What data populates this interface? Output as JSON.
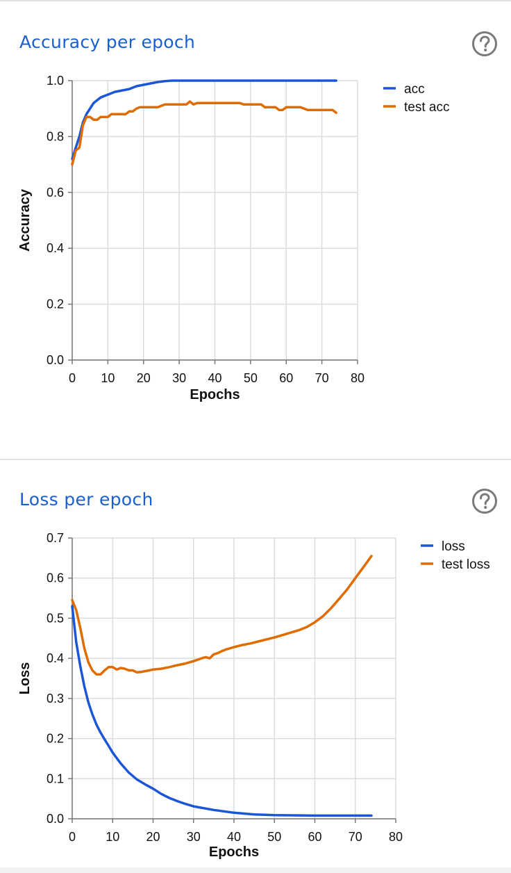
{
  "panels": [
    {
      "title": "Accuracy per epoch",
      "chart_data": {
        "type": "line",
        "title": "",
        "xlabel": "Epochs",
        "ylabel": "Accuracy",
        "xlim": [
          0,
          80
        ],
        "ylim": [
          0,
          1
        ],
        "xticks": [
          "0",
          "10",
          "20",
          "30",
          "40",
          "50",
          "60",
          "70",
          "80"
        ],
        "yticks": [
          "0.0",
          "0.2",
          "0.4",
          "0.6",
          "0.8",
          "1.0"
        ],
        "grid": true,
        "legend": "top-right",
        "series": [
          {
            "name": "acc",
            "color": "#1a56d6",
            "x": [
              0,
              1,
              2,
              3,
              4,
              5,
              6,
              7,
              8,
              9,
              10,
              12,
              14,
              16,
              18,
              20,
              22,
              24,
              26,
              28,
              30,
              35,
              40,
              50,
              60,
              70,
              74
            ],
            "y": [
              0.72,
              0.76,
              0.8,
              0.85,
              0.88,
              0.9,
              0.92,
              0.93,
              0.94,
              0.945,
              0.95,
              0.96,
              0.965,
              0.97,
              0.98,
              0.985,
              0.99,
              0.995,
              0.998,
              1.0,
              1.0,
              1.0,
              1.0,
              1.0,
              1.0,
              1.0,
              1.0
            ]
          },
          {
            "name": "test acc",
            "color": "#e06c00",
            "x": [
              0,
              1,
              2,
              3,
              4,
              5,
              6,
              7,
              8,
              9,
              10,
              11,
              12,
              14,
              15,
              16,
              17,
              18,
              19,
              20,
              21,
              22,
              24,
              25,
              26,
              28,
              30,
              31,
              32,
              33,
              34,
              35,
              38,
              40,
              45,
              47,
              48,
              50,
              52,
              53,
              54,
              56,
              57,
              58,
              59,
              60,
              62,
              63,
              64,
              66,
              67,
              68,
              70,
              72,
              73,
              74
            ],
            "y": [
              0.7,
              0.75,
              0.76,
              0.84,
              0.87,
              0.87,
              0.86,
              0.86,
              0.87,
              0.87,
              0.87,
              0.88,
              0.88,
              0.88,
              0.88,
              0.89,
              0.89,
              0.9,
              0.905,
              0.905,
              0.905,
              0.905,
              0.905,
              0.91,
              0.915,
              0.915,
              0.915,
              0.915,
              0.915,
              0.925,
              0.915,
              0.92,
              0.92,
              0.92,
              0.92,
              0.92,
              0.915,
              0.915,
              0.915,
              0.915,
              0.905,
              0.905,
              0.905,
              0.895,
              0.895,
              0.905,
              0.905,
              0.905,
              0.905,
              0.895,
              0.895,
              0.895,
              0.895,
              0.895,
              0.895,
              0.885
            ]
          }
        ]
      }
    },
    {
      "title": "Loss per epoch",
      "chart_data": {
        "type": "line",
        "title": "",
        "xlabel": "Epochs",
        "ylabel": "Loss",
        "xlim": [
          0,
          80
        ],
        "ylim": [
          0,
          0.7
        ],
        "xticks": [
          "0",
          "10",
          "20",
          "30",
          "40",
          "50",
          "60",
          "70",
          "80"
        ],
        "yticks": [
          "0.0",
          "0.1",
          "0.2",
          "0.3",
          "0.4",
          "0.5",
          "0.6",
          "0.7"
        ],
        "grid": true,
        "legend": "top-right",
        "series": [
          {
            "name": "loss",
            "color": "#1a56d6",
            "x": [
              0,
              1,
              2,
              3,
              4,
              5,
              6,
              7,
              8,
              9,
              10,
              12,
              14,
              16,
              18,
              20,
              22,
              24,
              26,
              28,
              30,
              35,
              40,
              45,
              50,
              60,
              70,
              74
            ],
            "y": [
              0.53,
              0.44,
              0.38,
              0.33,
              0.29,
              0.26,
              0.235,
              0.215,
              0.198,
              0.182,
              0.165,
              0.138,
              0.115,
              0.098,
              0.086,
              0.075,
              0.062,
              0.052,
              0.044,
              0.037,
              0.031,
              0.022,
              0.015,
              0.011,
              0.009,
              0.008,
              0.008,
              0.008
            ]
          },
          {
            "name": "test loss",
            "color": "#e06c00",
            "x": [
              0,
              1,
              2,
              3,
              4,
              5,
              6,
              7,
              8,
              9,
              10,
              11,
              12,
              13,
              14,
              15,
              16,
              17,
              18,
              20,
              22,
              24,
              26,
              28,
              30,
              32,
              33,
              34,
              35,
              36,
              37,
              38,
              40,
              42,
              44,
              46,
              48,
              50,
              52,
              54,
              56,
              58,
              60,
              62,
              64,
              66,
              68,
              70,
              72,
              74
            ],
            "y": [
              0.545,
              0.52,
              0.475,
              0.425,
              0.39,
              0.37,
              0.36,
              0.36,
              0.37,
              0.378,
              0.378,
              0.372,
              0.376,
              0.374,
              0.37,
              0.37,
              0.365,
              0.366,
              0.368,
              0.372,
              0.374,
              0.378,
              0.383,
              0.387,
              0.393,
              0.4,
              0.403,
              0.4,
              0.41,
              0.413,
              0.418,
              0.422,
              0.428,
              0.433,
              0.437,
              0.442,
              0.447,
              0.452,
              0.458,
              0.464,
              0.47,
              0.478,
              0.49,
              0.505,
              0.525,
              0.548,
              0.572,
              0.6,
              0.627,
              0.655
            ]
          }
        ]
      }
    }
  ]
}
